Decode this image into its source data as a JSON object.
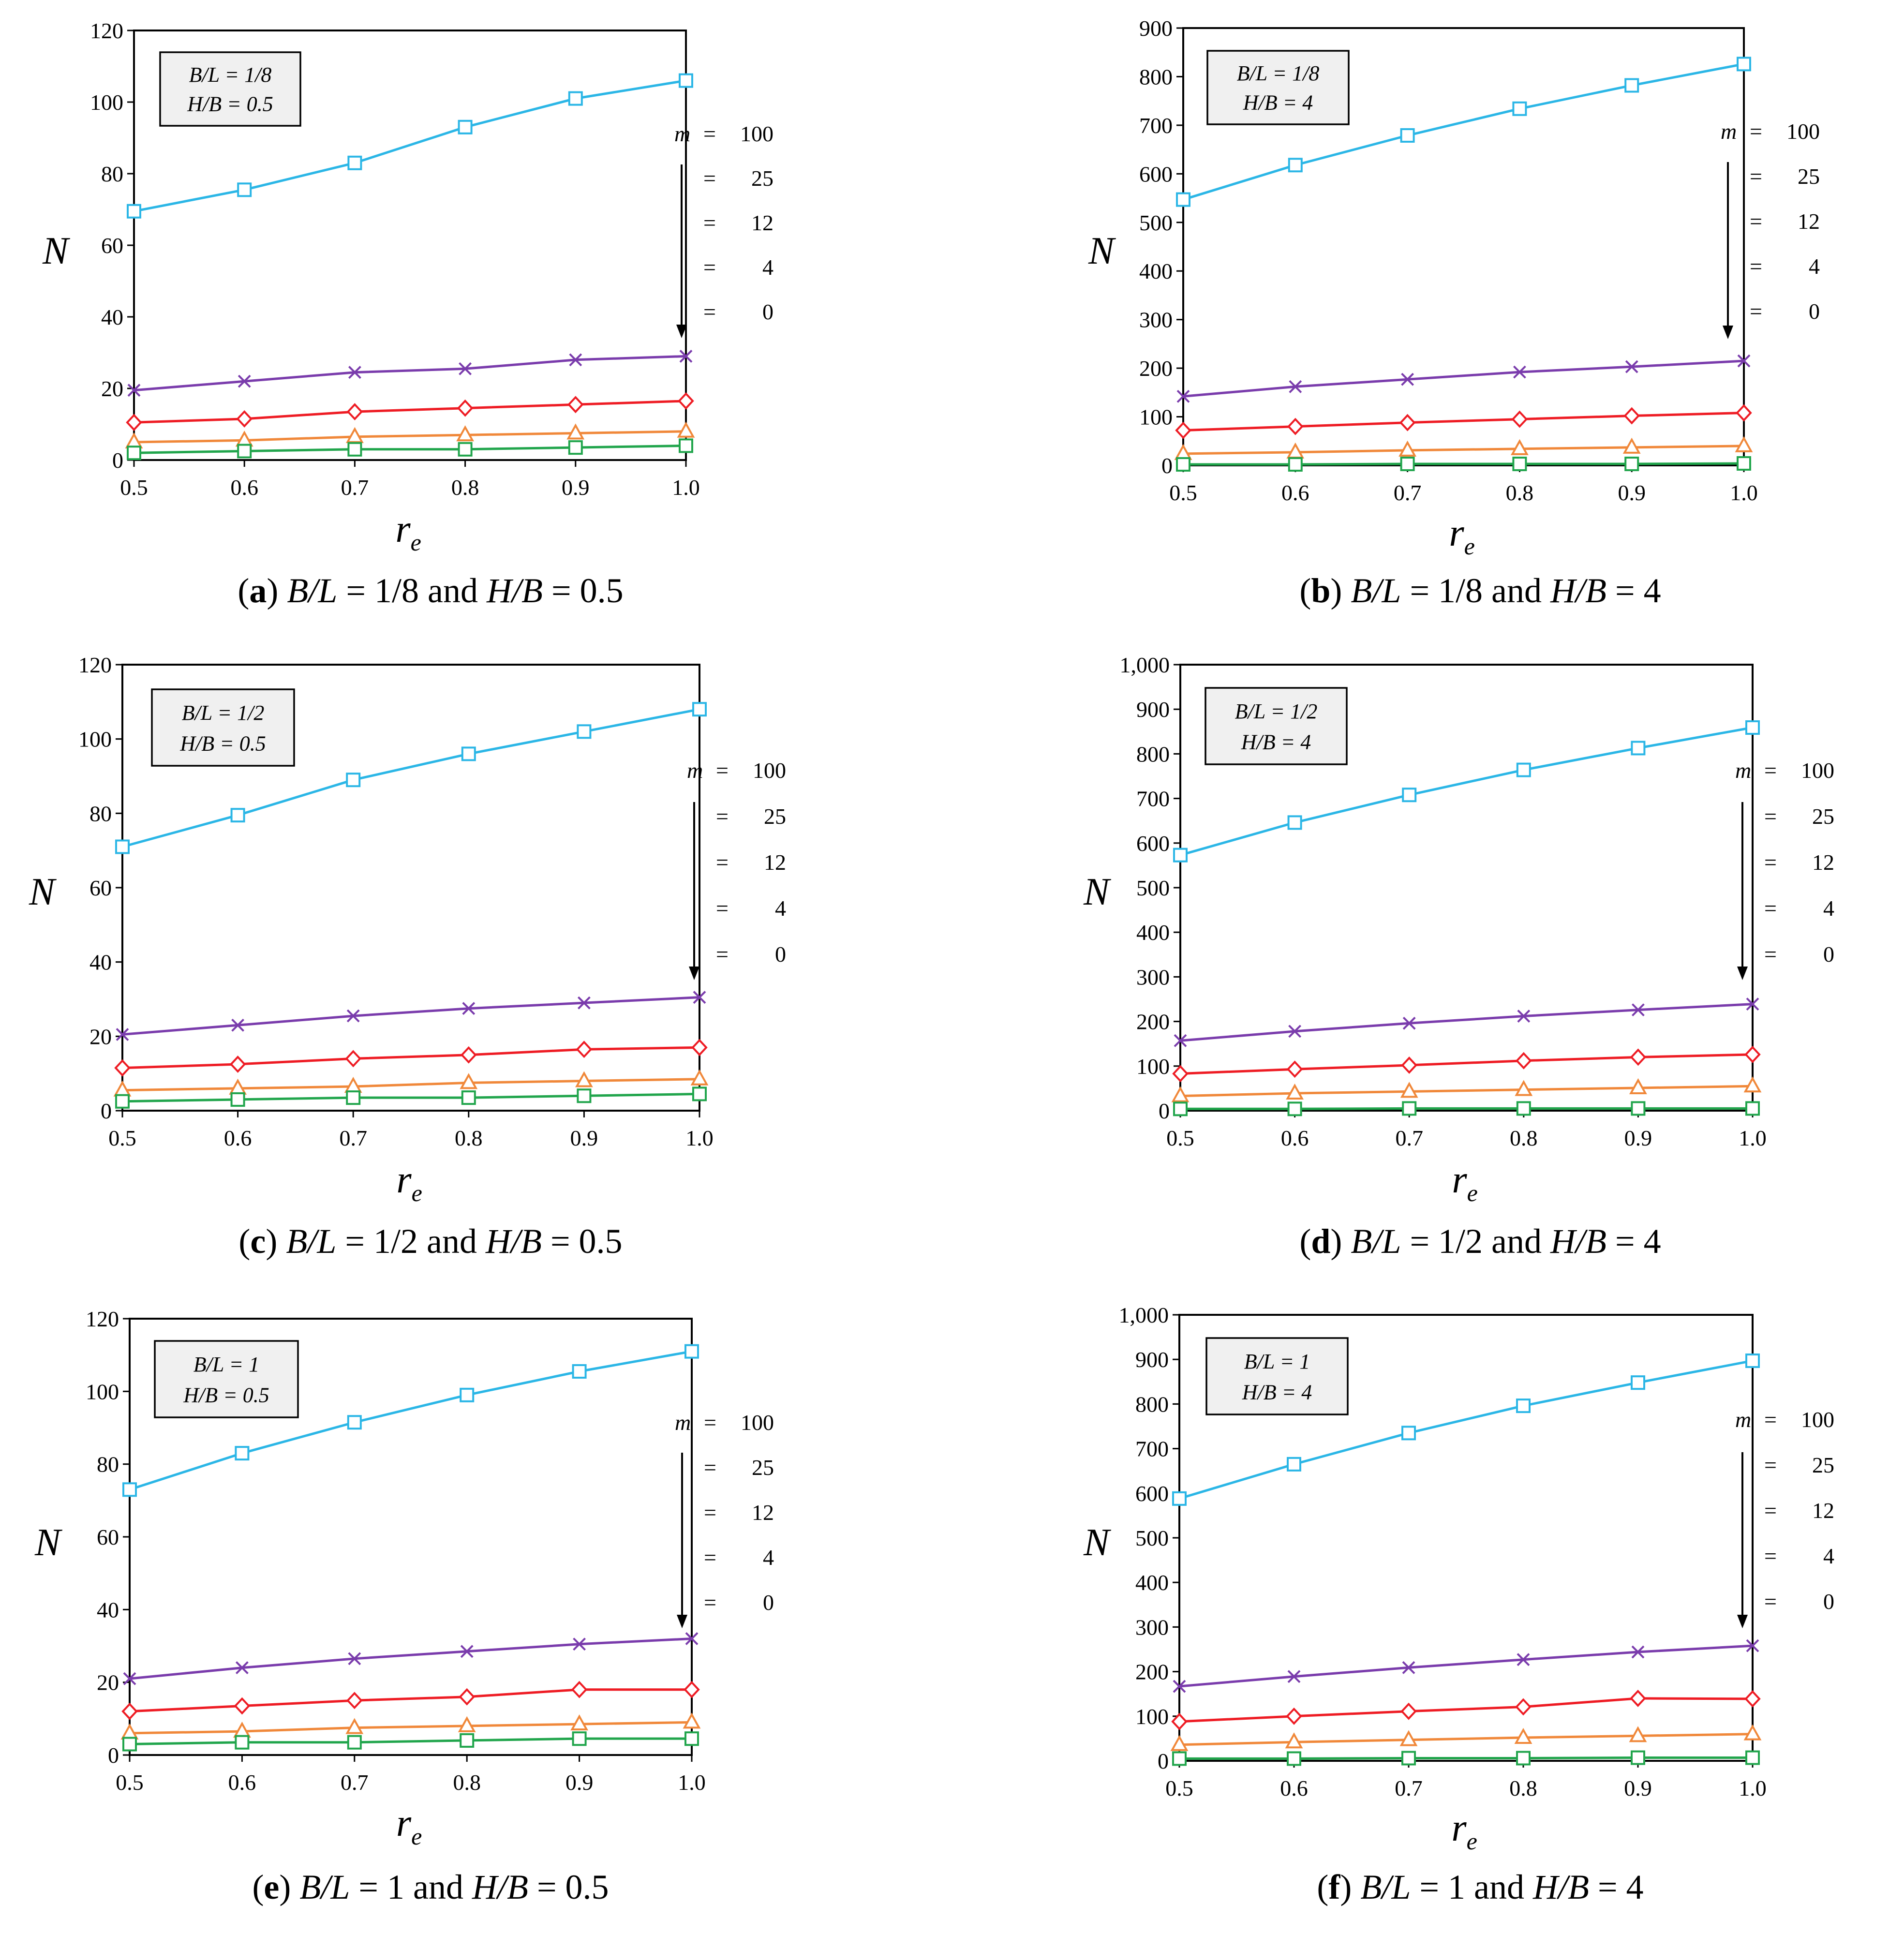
{
  "colors": {
    "m100": "#2bb6e6",
    "m25": "#7a3cac",
    "m12": "#ee1c24",
    "m4": "#f0883a",
    "m0": "#21a54c",
    "frame": "#000000",
    "box_fill": "#f0f0f0"
  },
  "chart_data": [
    {
      "type": "line",
      "panel": "a",
      "caption": {
        "label": "a",
        "text1": "B/L",
        "value1": " = 1/8 and ",
        "text2": "H/B",
        "value2": " = 0.5"
      },
      "box": {
        "line1": "B/L = 1/8",
        "line2": "H/B = 0.5"
      },
      "xlabel": "r",
      "xlabel_sub": "e",
      "ylabel": "N",
      "x": [
        0.5,
        0.6,
        0.7,
        0.8,
        0.9,
        1.0
      ],
      "xtick_labels": [
        "0.5",
        "0.6",
        "0.7",
        "0.8",
        "0.9",
        "1.0"
      ],
      "ylim": [
        0,
        120
      ],
      "ytick_labels": [
        "0",
        "20",
        "40",
        "60",
        "80",
        "100",
        "120"
      ],
      "ytick_values": [
        0,
        20,
        40,
        60,
        80,
        100,
        120
      ],
      "legend": {
        "m_label": "m",
        "eq": "=",
        "entries": [
          "100",
          "25",
          "12",
          "4",
          "0"
        ]
      },
      "series": [
        {
          "name": "m = 100",
          "marker": "square",
          "values": [
            69.5,
            75.5,
            83,
            93,
            101,
            106
          ]
        },
        {
          "name": "m = 25",
          "marker": "x",
          "values": [
            19.5,
            22,
            24.5,
            25.5,
            28,
            29
          ]
        },
        {
          "name": "m = 12",
          "marker": "diamond",
          "values": [
            10.5,
            11.5,
            13.5,
            14.5,
            15.5,
            16.5
          ]
        },
        {
          "name": "m = 4",
          "marker": "triangle",
          "values": [
            5,
            5.5,
            6.5,
            7,
            7.5,
            8
          ]
        },
        {
          "name": "m = 0",
          "marker": "square",
          "values": [
            2,
            2.5,
            3,
            3,
            3.5,
            4
          ]
        }
      ]
    },
    {
      "type": "line",
      "panel": "b",
      "caption": {
        "label": "b",
        "text1": "B/L",
        "value1": " = 1/8 and ",
        "text2": "H/B",
        "value2": " = 4"
      },
      "box": {
        "line1": "B/L = 1/8",
        "line2": "H/B = 4"
      },
      "xlabel": "r",
      "xlabel_sub": "e",
      "ylabel": "N",
      "x": [
        0.5,
        0.6,
        0.7,
        0.8,
        0.9,
        1.0
      ],
      "xtick_labels": [
        "0.5",
        "0.6",
        "0.7",
        "0.8",
        "0.9",
        "1.0"
      ],
      "ylim": [
        0,
        900
      ],
      "ytick_labels": [
        "0",
        "100",
        "200",
        "300",
        "400",
        "500",
        "600",
        "700",
        "800",
        "900"
      ],
      "ytick_values": [
        0,
        100,
        200,
        300,
        400,
        500,
        600,
        700,
        800,
        900
      ],
      "legend": {
        "m_label": "m",
        "eq": "=",
        "entries": [
          "100",
          "25",
          "12",
          "4",
          "0"
        ]
      },
      "series": [
        {
          "name": "m = 100",
          "marker": "square",
          "values": [
            547,
            618,
            679,
            734,
            782,
            826
          ]
        },
        {
          "name": "m = 25",
          "marker": "x",
          "values": [
            142,
            162,
            177,
            192,
            203,
            215
          ]
        },
        {
          "name": "m = 12",
          "marker": "diamond",
          "values": [
            72,
            80,
            88,
            95,
            102,
            108
          ]
        },
        {
          "name": "m = 4",
          "marker": "triangle",
          "values": [
            24,
            27,
            31,
            34,
            37,
            40
          ]
        },
        {
          "name": "m = 0",
          "marker": "square",
          "values": [
            2,
            2,
            3,
            3,
            3,
            4
          ]
        }
      ]
    },
    {
      "type": "line",
      "panel": "c",
      "caption": {
        "label": "c",
        "text1": "B/L",
        "value1": " = 1/2 and ",
        "text2": "H/B",
        "value2": " = 0.5"
      },
      "box": {
        "line1": "B/L = 1/2",
        "line2": "H/B = 0.5"
      },
      "xlabel": "r",
      "xlabel_sub": "e",
      "ylabel": "N",
      "x": [
        0.5,
        0.6,
        0.7,
        0.8,
        0.9,
        1.0
      ],
      "xtick_labels": [
        "0.5",
        "0.6",
        "0.7",
        "0.8",
        "0.9",
        "1.0"
      ],
      "ylim": [
        0,
        120
      ],
      "ytick_labels": [
        "0",
        "20",
        "40",
        "60",
        "80",
        "100",
        "120"
      ],
      "ytick_values": [
        0,
        20,
        40,
        60,
        80,
        100,
        120
      ],
      "legend": {
        "m_label": "m",
        "eq": "=",
        "entries": [
          "100",
          "25",
          "12",
          "4",
          "0"
        ]
      },
      "series": [
        {
          "name": "m = 100",
          "marker": "square",
          "values": [
            71,
            79.5,
            89,
            96,
            102,
            108
          ]
        },
        {
          "name": "m = 25",
          "marker": "x",
          "values": [
            20.5,
            23,
            25.5,
            27.5,
            29,
            30.5
          ]
        },
        {
          "name": "m = 12",
          "marker": "diamond",
          "values": [
            11.5,
            12.5,
            14,
            15,
            16.5,
            17
          ]
        },
        {
          "name": "m = 4",
          "marker": "triangle",
          "values": [
            5.5,
            6,
            6.5,
            7.5,
            8,
            8.5
          ]
        },
        {
          "name": "m = 0",
          "marker": "square",
          "values": [
            2.5,
            3,
            3.5,
            3.5,
            4,
            4.5
          ]
        }
      ]
    },
    {
      "type": "line",
      "panel": "d",
      "caption": {
        "label": "d",
        "text1": "B/L",
        "value1": " = 1/2 and ",
        "text2": "H/B",
        "value2": " = 4"
      },
      "box": {
        "line1": "B/L = 1/2",
        "line2": "H/B = 4"
      },
      "xlabel": "r",
      "xlabel_sub": "e",
      "ylabel": "N",
      "x": [
        0.5,
        0.6,
        0.7,
        0.8,
        0.9,
        1.0
      ],
      "xtick_labels": [
        "0.5",
        "0.6",
        "0.7",
        "0.8",
        "0.9",
        "1.0"
      ],
      "ylim": [
        0,
        1000
      ],
      "ytick_labels": [
        "0",
        "100",
        "200",
        "300",
        "400",
        "500",
        "600",
        "700",
        "800",
        "900",
        "1,000"
      ],
      "ytick_values": [
        0,
        100,
        200,
        300,
        400,
        500,
        600,
        700,
        800,
        900,
        1000
      ],
      "legend": {
        "m_label": "m",
        "eq": "=",
        "entries": [
          "100",
          "25",
          "12",
          "4",
          "0"
        ]
      },
      "series": [
        {
          "name": "m = 100",
          "marker": "square",
          "values": [
            573,
            646,
            708,
            764,
            813,
            859
          ]
        },
        {
          "name": "m = 25",
          "marker": "x",
          "values": [
            157,
            178,
            196,
            212,
            226,
            239
          ]
        },
        {
          "name": "m = 12",
          "marker": "diamond",
          "values": [
            83,
            93,
            102,
            112,
            120,
            126
          ]
        },
        {
          "name": "m = 4",
          "marker": "triangle",
          "values": [
            33,
            39,
            43,
            47,
            51,
            55
          ]
        },
        {
          "name": "m = 0",
          "marker": "square",
          "values": [
            4,
            4,
            5,
            5,
            5,
            5
          ]
        }
      ]
    },
    {
      "type": "line",
      "panel": "e",
      "caption": {
        "label": "e",
        "text1": "B/L",
        "value1": " = 1 and ",
        "text2": "H/B",
        "value2": " = 0.5"
      },
      "box": {
        "line1": "B/L = 1",
        "line2": "H/B = 0.5"
      },
      "xlabel": "r",
      "xlabel_sub": "e",
      "ylabel": "N",
      "x": [
        0.5,
        0.6,
        0.7,
        0.8,
        0.9,
        1.0
      ],
      "xtick_labels": [
        "0.5",
        "0.6",
        "0.7",
        "0.8",
        "0.9",
        "1.0"
      ],
      "ylim": [
        0,
        120
      ],
      "ytick_labels": [
        "0",
        "20",
        "40",
        "60",
        "80",
        "100",
        "120"
      ],
      "ytick_values": [
        0,
        20,
        40,
        60,
        80,
        100,
        120
      ],
      "legend": {
        "m_label": "m",
        "eq": "=",
        "entries": [
          "100",
          "25",
          "12",
          "4",
          "0"
        ]
      },
      "series": [
        {
          "name": "m = 100",
          "marker": "square",
          "values": [
            73,
            83,
            91.5,
            99,
            105.5,
            111
          ]
        },
        {
          "name": "m = 25",
          "marker": "x",
          "values": [
            21,
            24,
            26.5,
            28.5,
            30.5,
            32
          ]
        },
        {
          "name": "m = 12",
          "marker": "diamond",
          "values": [
            12,
            13.5,
            15,
            16,
            18,
            18
          ]
        },
        {
          "name": "m = 4",
          "marker": "triangle",
          "values": [
            6,
            6.5,
            7.5,
            8,
            8.5,
            9
          ]
        },
        {
          "name": "m = 0",
          "marker": "square",
          "values": [
            3,
            3.5,
            3.5,
            4,
            4.5,
            4.5
          ]
        }
      ]
    },
    {
      "type": "line",
      "panel": "f",
      "caption": {
        "label": "f",
        "text1": "B/L",
        "value1": " = 1 and ",
        "text2": "H/B",
        "value2": " = 4"
      },
      "box": {
        "line1": "B/L = 1",
        "line2": "H/B = 4"
      },
      "xlabel": "r",
      "xlabel_sub": "e",
      "ylabel": "N",
      "x": [
        0.5,
        0.6,
        0.7,
        0.8,
        0.9,
        1.0
      ],
      "xtick_labels": [
        "0.5",
        "0.6",
        "0.7",
        "0.8",
        "0.9",
        "1.0"
      ],
      "ylim": [
        0,
        1000
      ],
      "ytick_labels": [
        "0",
        "100",
        "200",
        "300",
        "400",
        "500",
        "600",
        "700",
        "800",
        "900",
        "1,000"
      ],
      "ytick_values": [
        0,
        100,
        200,
        300,
        400,
        500,
        600,
        700,
        800,
        900,
        1000
      ],
      "legend": {
        "m_label": "m",
        "eq": "=",
        "entries": [
          "100",
          "25",
          "12",
          "4",
          "0"
        ]
      },
      "series": [
        {
          "name": "m = 100",
          "marker": "square",
          "values": [
            588,
            665,
            735,
            796,
            848,
            897
          ]
        },
        {
          "name": "m = 25",
          "marker": "x",
          "values": [
            167,
            189,
            209,
            227,
            244,
            258
          ]
        },
        {
          "name": "m = 12",
          "marker": "diamond",
          "values": [
            88,
            100,
            111,
            121,
            140,
            139
          ]
        },
        {
          "name": "m = 4",
          "marker": "triangle",
          "values": [
            36,
            42,
            47,
            52,
            56,
            60
          ]
        },
        {
          "name": "m = 0",
          "marker": "square",
          "values": [
            5,
            5,
            6,
            6,
            7,
            7
          ]
        }
      ]
    }
  ]
}
